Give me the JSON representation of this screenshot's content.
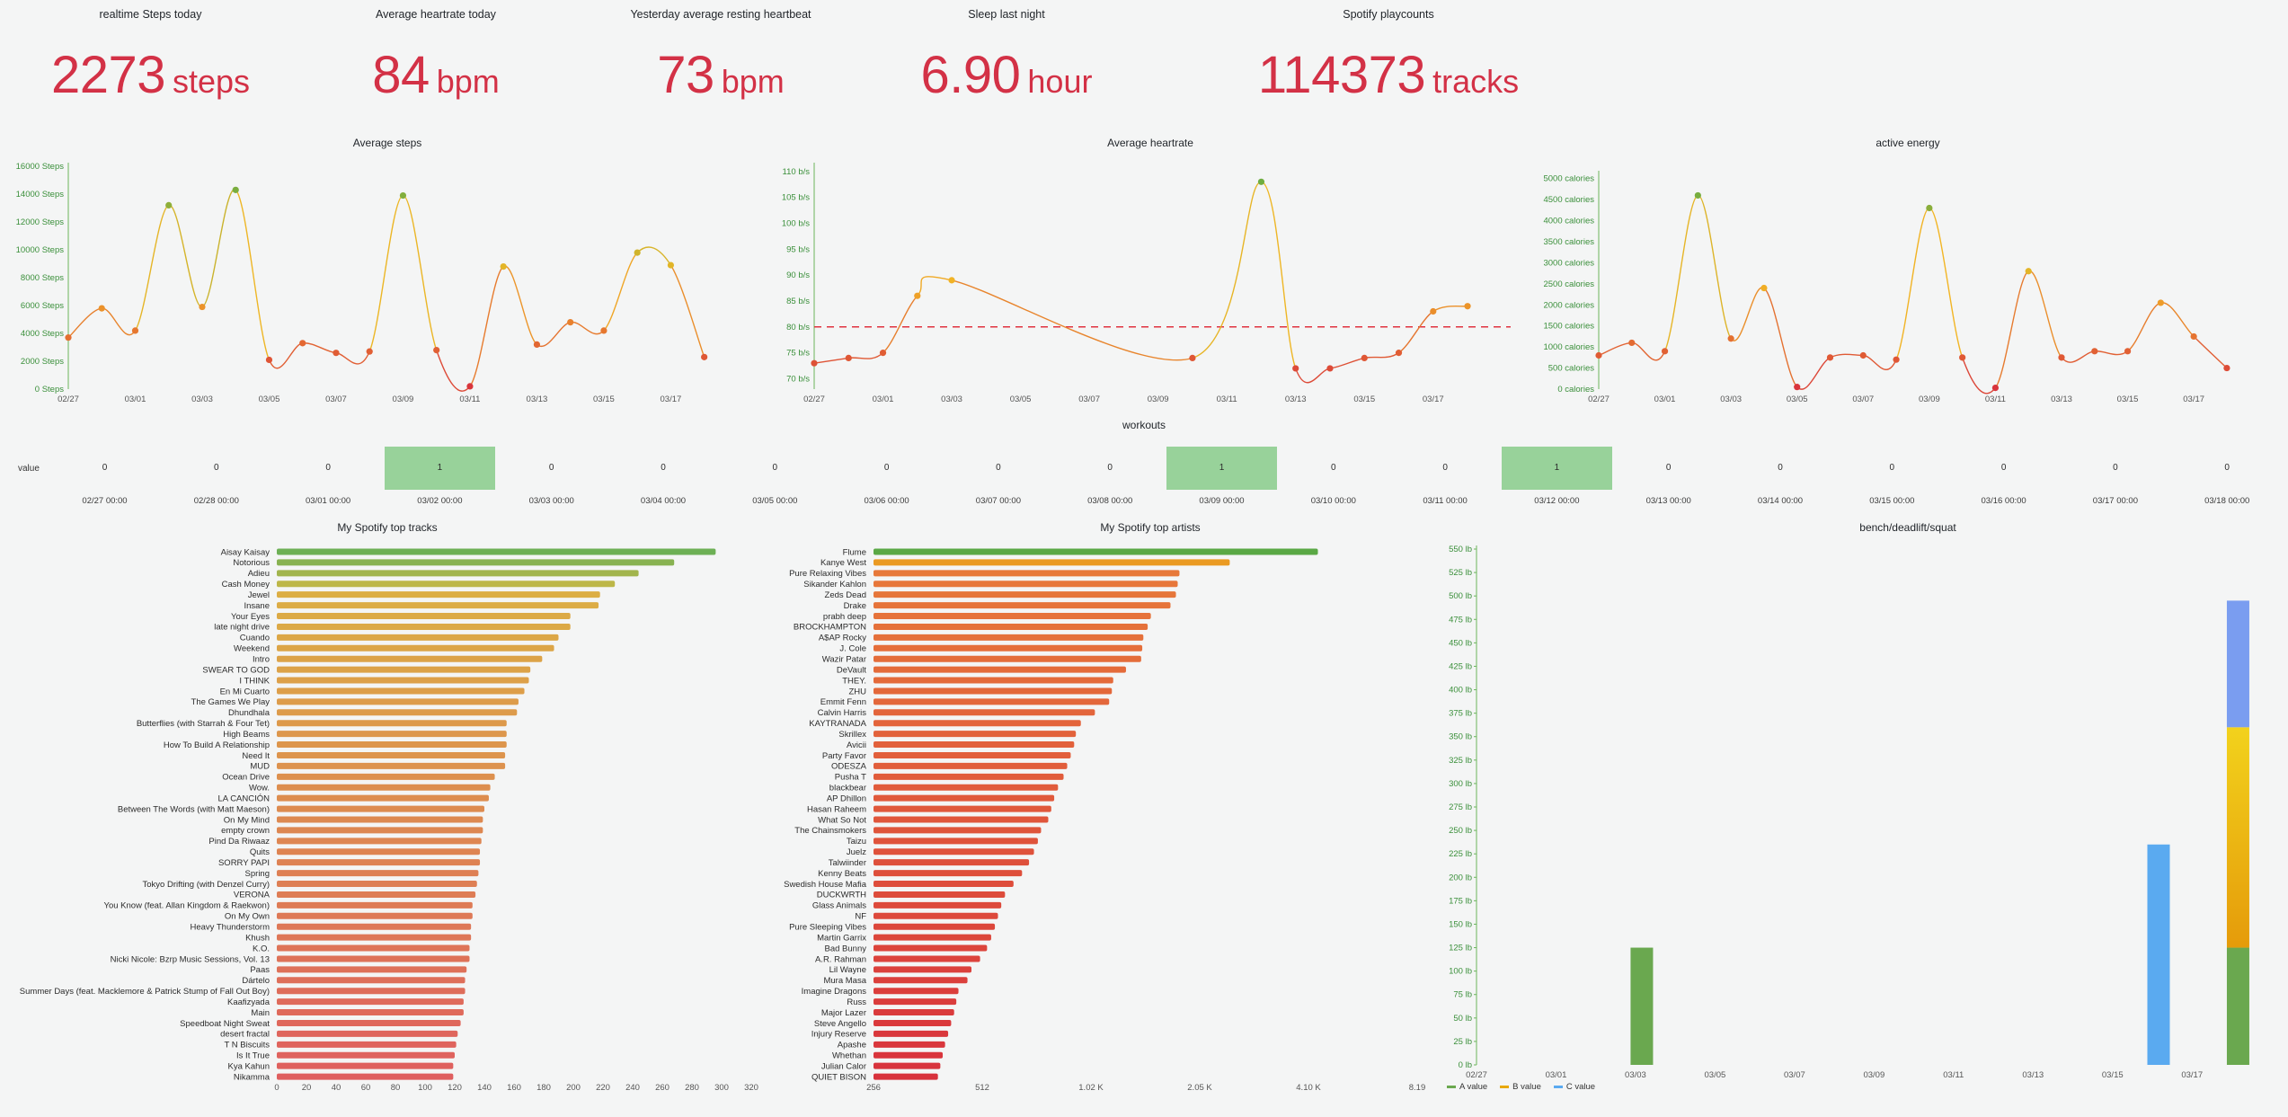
{
  "stats": [
    {
      "title": "realtime Steps today",
      "value": "2273",
      "unit": "steps"
    },
    {
      "title": "Average heartrate today",
      "value": "84",
      "unit": "bpm"
    },
    {
      "title": "Yesterday average resting heartbeat",
      "value": "73",
      "unit": "bpm"
    },
    {
      "title": "Sleep last night",
      "value": "6.90",
      "unit": "hour"
    },
    {
      "title": "Spotify playcounts",
      "value": "114373",
      "unit": "tracks"
    }
  ],
  "colors": {
    "stat": "#d33146",
    "axis_green": "#3a8f3a",
    "workout_on": "#98d29a",
    "threshold": "#e0323f"
  },
  "chart_data": [
    {
      "id": "steps",
      "type": "line",
      "title": "Average steps",
      "x": [
        "02/27",
        "02/28",
        "03/01",
        "03/02",
        "03/03",
        "03/04",
        "03/05",
        "03/06",
        "03/07",
        "03/08",
        "03/09",
        "03/10",
        "03/11",
        "03/12",
        "03/13",
        "03/14",
        "03/15",
        "03/16",
        "03/17",
        "03/18"
      ],
      "x_ticks": [
        "02/27",
        "03/01",
        "03/03",
        "03/05",
        "03/07",
        "03/09",
        "03/11",
        "03/13",
        "03/15",
        "03/17"
      ],
      "values": [
        3700,
        5800,
        4200,
        13200,
        5900,
        14300,
        2100,
        3300,
        2600,
        2700,
        13900,
        2800,
        200,
        8800,
        3200,
        4800,
        4200,
        9800,
        8900,
        2300
      ],
      "y_ticks": [
        "0 Steps",
        "2000 Steps",
        "4000 Steps",
        "6000 Steps",
        "8000 Steps",
        "10000 Steps",
        "12000 Steps",
        "14000 Steps",
        "16000 Steps"
      ],
      "ylim": [
        0,
        16000
      ]
    },
    {
      "id": "heartrate",
      "type": "line",
      "title": "Average heartrate",
      "x": [
        "02/27",
        "02/28",
        "03/01",
        "03/02",
        "03/03",
        "03/10",
        "03/12",
        "03/13",
        "03/14",
        "03/15",
        "03/16",
        "03/17",
        "03/18"
      ],
      "x_ticks": [
        "02/27",
        "03/01",
        "03/03",
        "03/05",
        "03/07",
        "03/09",
        "03/11",
        "03/13",
        "03/15",
        "03/17"
      ],
      "values": [
        73,
        74,
        75,
        86,
        89,
        74,
        108,
        72,
        72,
        74,
        75,
        83,
        84
      ],
      "threshold": 80,
      "y_ticks": [
        "70 b/s",
        "75 b/s",
        "80 b/s",
        "85 b/s",
        "90 b/s",
        "95 b/s",
        "100 b/s",
        "105 b/s",
        "110 b/s"
      ],
      "ylim": [
        68,
        111
      ]
    },
    {
      "id": "energy",
      "type": "line",
      "title": "active energy",
      "x": [
        "02/27",
        "02/28",
        "03/01",
        "03/02",
        "03/03",
        "03/04",
        "03/05",
        "03/06",
        "03/07",
        "03/08",
        "03/09",
        "03/10",
        "03/11",
        "03/12",
        "03/13",
        "03/14",
        "03/15",
        "03/16",
        "03/17",
        "03/18"
      ],
      "x_ticks": [
        "02/27",
        "03/01",
        "03/03",
        "03/05",
        "03/07",
        "03/09",
        "03/11",
        "03/13",
        "03/15",
        "03/17"
      ],
      "values": [
        800,
        1100,
        900,
        4600,
        1200,
        2400,
        50,
        750,
        800,
        700,
        4300,
        750,
        30,
        2800,
        750,
        900,
        900,
        2050,
        1250,
        500
      ],
      "y_ticks": [
        "0 calories",
        "500 calories",
        "1000 calories",
        "1500 calories",
        "2000 calories",
        "2500 calories",
        "3000 calories",
        "3500 calories",
        "4000 calories",
        "4500 calories",
        "5000 calories"
      ],
      "ylim": [
        0,
        5100
      ]
    },
    {
      "id": "workouts",
      "type": "heatmap",
      "title": "workouts",
      "row_label": "value",
      "x": [
        "02/27 00:00",
        "02/28 00:00",
        "03/01 00:00",
        "03/02 00:00",
        "03/03 00:00",
        "03/04 00:00",
        "03/05 00:00",
        "03/06 00:00",
        "03/07 00:00",
        "03/08 00:00",
        "03/09 00:00",
        "03/10 00:00",
        "03/11 00:00",
        "03/12 00:00",
        "03/13 00:00",
        "03/14 00:00",
        "03/15 00:00",
        "03/16 00:00",
        "03/17 00:00",
        "03/18 00:00"
      ],
      "values": [
        0,
        0,
        0,
        1,
        0,
        0,
        0,
        0,
        0,
        0,
        1,
        0,
        0,
        1,
        0,
        0,
        0,
        0,
        0,
        0
      ]
    },
    {
      "id": "tracks",
      "type": "bar",
      "orientation": "horizontal",
      "title": "My Spotify top tracks",
      "categories": [
        "Aisay Kaisay",
        "Notorious",
        "Adieu",
        "Cash Money",
        "Jewel",
        "Insane",
        "Your Eyes",
        "late night drive",
        "Cuando",
        "Weekend",
        "Intro",
        "SWEAR TO GOD",
        "I THINK",
        "En Mi Cuarto",
        "The Games We Play",
        "Dhundhala",
        "Butterflies (with Starrah & Four Tet)",
        "High Beams",
        "How To Build A Relationship",
        "Need It",
        "MUD",
        "Ocean Drive",
        "Wow.",
        "LA CANCIÓN",
        "Between The Words (with Matt Maeson)",
        "On My Mind",
        "empty crown",
        "Pind Da Riwaaz",
        "Quits",
        "SORRY PAPI",
        "Spring",
        "Tokyo Drifting (with Denzel Curry)",
        "VERONA",
        "You Know (feat. Allan Kingdom & Raekwon)",
        "On My Own",
        "Heavy Thunderstorm",
        "Khush",
        "K.O.",
        "Nicki Nicole: Bzrp Music Sessions, Vol. 13",
        "Paas",
        "Dártelo",
        "Summer Days (feat. Macklemore & Patrick Stump of Fall Out Boy)",
        "Kaafizyada",
        "Main",
        "Speedboat Night Sweat",
        "desert fractal",
        "T N Biscuits",
        "Is It True",
        "Kya Kahun",
        "Nikamma"
      ],
      "values": [
        296,
        268,
        244,
        228,
        218,
        217,
        198,
        198,
        190,
        187,
        179,
        171,
        170,
        167,
        163,
        162,
        155,
        155,
        155,
        154,
        154,
        147,
        144,
        143,
        140,
        139,
        139,
        138,
        137,
        137,
        136,
        135,
        134,
        132,
        132,
        131,
        131,
        130,
        130,
        128,
        127,
        127,
        126,
        126,
        124,
        122,
        121,
        120,
        119,
        119
      ],
      "x_ticks": [
        "0",
        "20",
        "40",
        "60",
        "80",
        "100",
        "120",
        "140",
        "160",
        "180",
        "200",
        "220",
        "240",
        "260",
        "280",
        "300",
        "320"
      ],
      "xlim": [
        0,
        320
      ]
    },
    {
      "id": "artists",
      "type": "bar",
      "orientation": "horizontal",
      "scale": "log2",
      "title": "My Spotify top artists",
      "categories": [
        "Flume",
        "Kanye West",
        "Pure Relaxing Vibes",
        "Sikander Kahlon",
        "Zeds Dead",
        "Drake",
        "prabh deep",
        "BROCKHAMPTON",
        "A$AP Rocky",
        "J. Cole",
        "Wazir Patar",
        "DeVault",
        "THEY.",
        "ZHU",
        "Emmit Fenn",
        "Calvin Harris",
        "KAYTRANADA",
        "Skrillex",
        "Avicii",
        "Party Favor",
        "ODESZA",
        "Pusha T",
        "blackbear",
        "AP Dhillon",
        "Hasan Raheem",
        "What So Not",
        "The Chainsmokers",
        "Taizu",
        "Juelz",
        "Talwiinder",
        "Kenny Beats",
        "Swedish House Mafia",
        "DUCKWRTH",
        "Glass Animals",
        "NF",
        "Pure Sleeping Vibes",
        "Martin Garrix",
        "Bad Bunny",
        "A.R. Rahman",
        "Lil Wayne",
        "Mura Masa",
        "Imagine Dragons",
        "Russ",
        "Major Lazer",
        "Steve Angello",
        "Injury Reserve",
        "Apashe",
        "Whethan",
        "Julian Calor",
        "QUIET BISON"
      ],
      "values": [
        4350,
        2480,
        1800,
        1780,
        1760,
        1700,
        1500,
        1470,
        1430,
        1420,
        1410,
        1280,
        1180,
        1170,
        1150,
        1050,
        960,
        930,
        920,
        900,
        880,
        860,
        830,
        810,
        795,
        780,
        745,
        730,
        712,
        690,
        660,
        625,
        592,
        578,
        566,
        555,
        542,
        528,
        505,
        478,
        466,
        440,
        434,
        428,
        420,
        412,
        404,
        398,
        392,
        386
      ],
      "x_ticks": [
        "256",
        "512",
        "1.02 K",
        "2.05 K",
        "4.10 K",
        "8.19"
      ],
      "xlim": [
        256,
        8192
      ]
    },
    {
      "id": "lifts",
      "type": "bar",
      "stacked": true,
      "title": "bench/deadlift/squat",
      "x_ticks": [
        "02/27",
        "03/01",
        "03/03",
        "03/05",
        "03/07",
        "03/09",
        "03/11",
        "03/13",
        "03/15",
        "03/17"
      ],
      "series": [
        {
          "name": "A value",
          "color": "#6aa84f",
          "points": [
            [
              "03/03",
              125
            ],
            [
              "03/18",
              125
            ]
          ]
        },
        {
          "name": "B value",
          "color": "#e8a800",
          "points": [
            [
              "03/18",
              235
            ]
          ]
        },
        {
          "name": "C value",
          "color": "#5aaaf0",
          "points": [
            [
              "03/16",
              235
            ],
            [
              "03/18",
              135
            ]
          ]
        }
      ],
      "y_ticks": [
        "0 lb",
        "25 lb",
        "50 lb",
        "75 lb",
        "100 lb",
        "125 lb",
        "150 lb",
        "175 lb",
        "200 lb",
        "225 lb",
        "250 lb",
        "275 lb",
        "300 lb",
        "325 lb",
        "350 lb",
        "375 lb",
        "400 lb",
        "425 lb",
        "450 lb",
        "475 lb",
        "500 lb",
        "525 lb",
        "550 lb"
      ],
      "ylim": [
        0,
        550
      ]
    }
  ]
}
